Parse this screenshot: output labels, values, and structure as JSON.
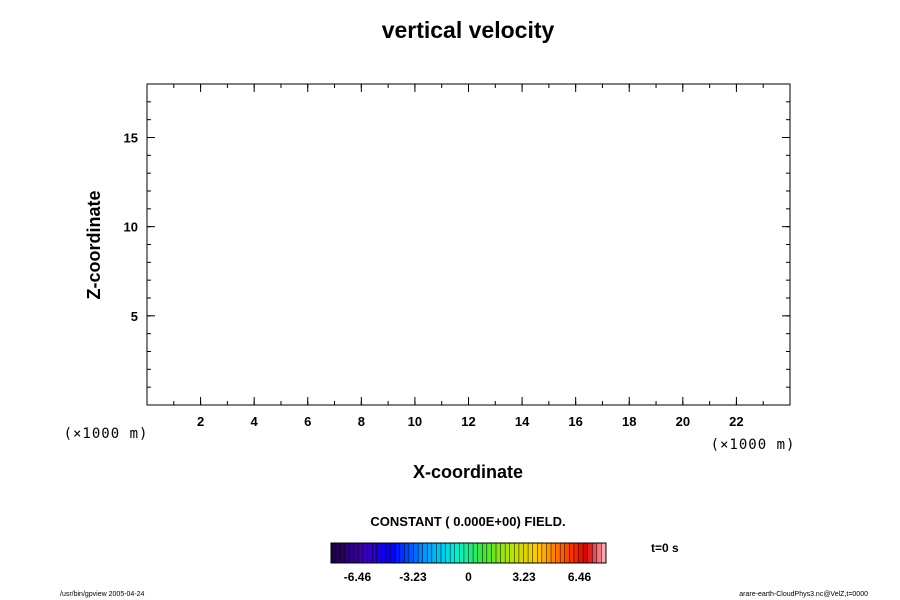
{
  "title": "vertical velocity",
  "field_note": "CONSTANT ( 0.000E+00) FIELD.",
  "time_label": "t=0 s",
  "footer_left": "/usr/bin/gpview 2005-04-24",
  "footer_right": "arare-earth-CloudPhys3.nc@VelZ,t=0000",
  "chart_data": {
    "type": "heatmap",
    "title": "vertical velocity",
    "xlabel": "X-coordinate",
    "ylabel": "Z-coordinate",
    "x_unit": "(×1000 m)",
    "y_unit": "(×1000 m)",
    "xlim": [
      0,
      24
    ],
    "ylim": [
      0,
      18
    ],
    "x_ticks": [
      2,
      4,
      6,
      8,
      10,
      12,
      14,
      16,
      18,
      20,
      22
    ],
    "y_ticks": [
      5,
      10,
      15
    ],
    "field_value": 0.0,
    "colorbar": {
      "min": -8,
      "max": 8,
      "tick_values": [
        -6.46,
        -3.23,
        0,
        3.23,
        6.46
      ],
      "tick_labels": [
        "-6.46",
        "-3.23",
        "0",
        "3.23",
        "6.46"
      ],
      "colormap": "rainbow"
    }
  }
}
